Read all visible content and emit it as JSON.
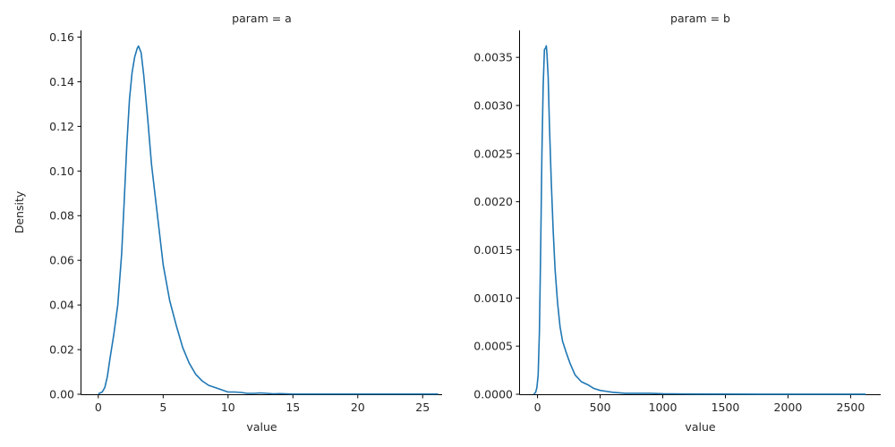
{
  "chart_data": [
    {
      "type": "line",
      "title": "param = a",
      "xlabel": "value",
      "ylabel": "Density",
      "xlim": [
        -1.3,
        26.5
      ],
      "ylim": [
        0,
        0.163
      ],
      "xticks": [
        0,
        5,
        10,
        15,
        20,
        25
      ],
      "xtick_labels": [
        "0",
        "5",
        "10",
        "15",
        "20",
        "25"
      ],
      "yticks": [
        0,
        0.02,
        0.04,
        0.06,
        0.08,
        0.1,
        0.12,
        0.14,
        0.16
      ],
      "ytick_labels": [
        "0.00",
        "0.02",
        "0.04",
        "0.06",
        "0.08",
        "0.10",
        "0.12",
        "0.14",
        "0.16"
      ],
      "grid": false,
      "color": "#1f77b4",
      "series": [
        {
          "x": [
            0,
            0.3,
            0.5,
            0.7,
            0.9,
            1.2,
            1.5,
            1.8,
            2.0,
            2.2,
            2.4,
            2.6,
            2.8,
            3.0,
            3.1,
            3.3,
            3.5,
            3.8,
            4.1,
            4.5,
            5.0,
            5.5,
            6.0,
            6.5,
            7.0,
            7.5,
            8.0,
            8.5,
            9.0,
            9.5,
            10.0,
            10.5,
            11.0,
            11.5,
            12.0,
            12.5,
            13.0,
            13.5,
            14.0,
            14.5,
            15.0,
            16.0,
            17.0,
            18.0,
            20.0,
            22.0,
            24.0,
            26.2
          ],
          "y": [
            0.0002,
            0.001,
            0.003,
            0.008,
            0.016,
            0.027,
            0.04,
            0.063,
            0.087,
            0.112,
            0.132,
            0.144,
            0.151,
            0.155,
            0.156,
            0.153,
            0.143,
            0.124,
            0.103,
            0.083,
            0.058,
            0.042,
            0.031,
            0.021,
            0.014,
            0.009,
            0.006,
            0.004,
            0.003,
            0.002,
            0.001,
            0.001,
            0.0008,
            0.0004,
            0.0004,
            0.0006,
            0.0004,
            0.0002,
            0.0003,
            0.0002,
            0.0001,
            0.0001,
            0.0001,
            0.0001,
            0.0001,
            0.0001,
            0.0001,
            0.0001
          ]
        }
      ]
    },
    {
      "type": "line",
      "title": "param = b",
      "xlabel": "value",
      "ylabel": "",
      "xlim": [
        -140,
        2740
      ],
      "ylim": [
        0,
        0.00378
      ],
      "xticks": [
        0,
        500,
        1000,
        1500,
        2000,
        2500
      ],
      "xtick_labels": [
        "0",
        "500",
        "1000",
        "1500",
        "2000",
        "2500"
      ],
      "yticks": [
        0,
        0.0005,
        0.001,
        0.0015,
        0.002,
        0.0025,
        0.003,
        0.0035
      ],
      "ytick_labels": [
        "0.0000",
        "0.0005",
        "0.0010",
        "0.0015",
        "0.0020",
        "0.0025",
        "0.0030",
        "0.0035"
      ],
      "grid": false,
      "color": "#1f77b4",
      "series": [
        {
          "x": [
            -30,
            -15,
            -5,
            5,
            15,
            25,
            35,
            45,
            55,
            65,
            70,
            75,
            85,
            95,
            110,
            125,
            140,
            160,
            180,
            200,
            230,
            260,
            300,
            350,
            400,
            450,
            500,
            550,
            600,
            700,
            800,
            900,
            1000,
            1200,
            1500,
            1800,
            2100,
            2400,
            2620
          ],
          "y": [
            0.0,
            2e-05,
            7e-05,
            0.0002,
            0.00065,
            0.0015,
            0.0025,
            0.0032,
            0.00358,
            0.0036,
            0.00362,
            0.00354,
            0.0033,
            0.0028,
            0.0022,
            0.0017,
            0.0013,
            0.00095,
            0.0007,
            0.00055,
            0.00043,
            0.00032,
            0.0002,
            0.00013,
            0.0001,
            6e-05,
            4e-05,
            3e-05,
            2e-05,
            1e-05,
            1e-05,
            1e-05,
            5e-06,
            3e-06,
            2e-06,
            1e-06,
            1e-06,
            1e-06,
            1e-06
          ]
        }
      ]
    }
  ]
}
